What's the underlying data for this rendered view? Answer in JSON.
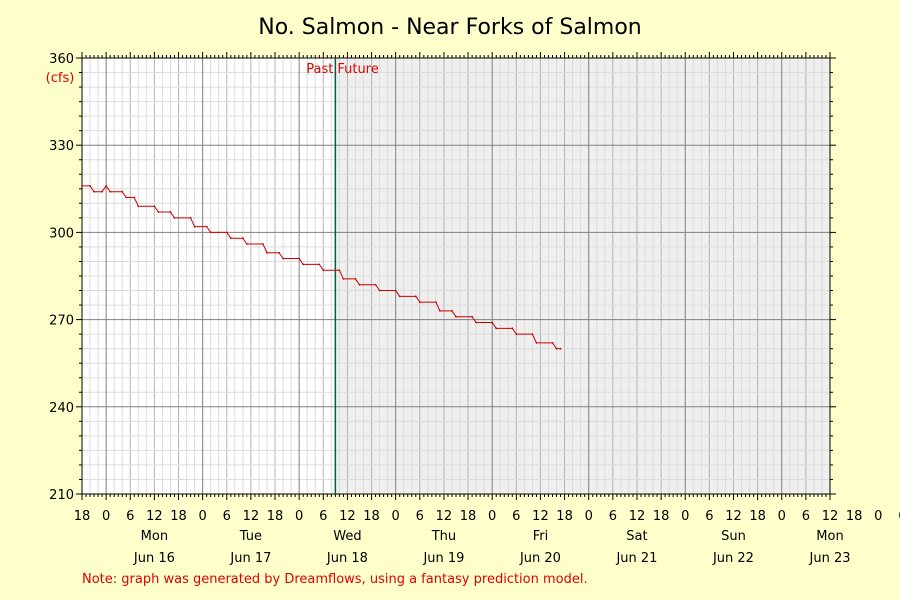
{
  "chart_data": {
    "type": "line",
    "title": "No. Salmon - Near Forks of Salmon",
    "yunit": "(cfs)",
    "ylim": [
      210,
      360
    ],
    "yticks": [
      210,
      240,
      270,
      300,
      330,
      360
    ],
    "xlim": [
      "Jun 15 18:00",
      "Jun 23 12:00"
    ],
    "hour_ticks": [
      "18",
      "0",
      "6",
      "12",
      "18",
      "0",
      "6",
      "12",
      "18",
      "0",
      "6",
      "12",
      "18",
      "0",
      "6",
      "12",
      "18",
      "0",
      "6",
      "12",
      "18",
      "0",
      "6",
      "12",
      "18",
      "0",
      "6",
      "12",
      "18",
      "0",
      "6",
      "12",
      "18",
      "0",
      "6",
      "12"
    ],
    "day_labels": [
      {
        "day": "Mon",
        "date": "Jun 16"
      },
      {
        "day": "Tue",
        "date": "Jun 17"
      },
      {
        "day": "Wed",
        "date": "Jun 18"
      },
      {
        "day": "Thu",
        "date": "Jun 19"
      },
      {
        "day": "Fri",
        "date": "Jun 20"
      },
      {
        "day": "Sat",
        "date": "Jun 21"
      },
      {
        "day": "Sun",
        "date": "Jun 22"
      },
      {
        "day": "Mon",
        "date": "Jun 23"
      }
    ],
    "now": "Jun 18 09:00",
    "past_label": "Past",
    "future_label": "Future",
    "grid": true,
    "series": [
      {
        "color": "#cc0000",
        "points": [
          [
            "Jun 15 18:00",
            316
          ],
          [
            "Jun 15 20:00",
            316
          ],
          [
            "Jun 15 21:00",
            314
          ],
          [
            "Jun 15 23:00",
            314
          ],
          [
            "Jun 16 00:00",
            316
          ],
          [
            "Jun 16 01:00",
            314
          ],
          [
            "Jun 16 04:00",
            314
          ],
          [
            "Jun 16 05:00",
            312
          ],
          [
            "Jun 16 07:00",
            312
          ],
          [
            "Jun 16 08:00",
            309
          ],
          [
            "Jun 16 12:00",
            309
          ],
          [
            "Jun 16 13:00",
            307
          ],
          [
            "Jun 16 16:00",
            307
          ],
          [
            "Jun 16 17:00",
            305
          ],
          [
            "Jun 16 21:00",
            305
          ],
          [
            "Jun 16 22:00",
            302
          ],
          [
            "Jun 17 01:00",
            302
          ],
          [
            "Jun 17 02:00",
            300
          ],
          [
            "Jun 17 06:00",
            300
          ],
          [
            "Jun 17 07:00",
            298
          ],
          [
            "Jun 17 10:00",
            298
          ],
          [
            "Jun 17 11:00",
            296
          ],
          [
            "Jun 17 15:00",
            296
          ],
          [
            "Jun 17 16:00",
            293
          ],
          [
            "Jun 17 19:00",
            293
          ],
          [
            "Jun 17 20:00",
            291
          ],
          [
            "Jun 18 00:00",
            291
          ],
          [
            "Jun 18 01:00",
            289
          ],
          [
            "Jun 18 05:00",
            289
          ],
          [
            "Jun 18 06:00",
            287
          ],
          [
            "Jun 18 10:00",
            287
          ],
          [
            "Jun 18 11:00",
            284
          ],
          [
            "Jun 18 14:00",
            284
          ],
          [
            "Jun 18 15:00",
            282
          ],
          [
            "Jun 18 19:00",
            282
          ],
          [
            "Jun 18 20:00",
            280
          ],
          [
            "Jun 19 00:00",
            280
          ],
          [
            "Jun 19 01:00",
            278
          ],
          [
            "Jun 19 05:00",
            278
          ],
          [
            "Jun 19 06:00",
            276
          ],
          [
            "Jun 19 10:00",
            276
          ],
          [
            "Jun 19 11:00",
            273
          ],
          [
            "Jun 19 14:00",
            273
          ],
          [
            "Jun 19 15:00",
            271
          ],
          [
            "Jun 19 19:00",
            271
          ],
          [
            "Jun 19 20:00",
            269
          ],
          [
            "Jun 20 00:00",
            269
          ],
          [
            "Jun 20 01:00",
            267
          ],
          [
            "Jun 20 05:00",
            267
          ],
          [
            "Jun 20 06:00",
            265
          ],
          [
            "Jun 20 10:00",
            265
          ],
          [
            "Jun 20 11:00",
            262
          ],
          [
            "Jun 20 15:00",
            262
          ],
          [
            "Jun 20 16:00",
            260
          ],
          [
            "Jun 20 17:00",
            260
          ]
        ]
      }
    ],
    "note": "Note: graph was generated by Dreamflows, using a fantasy prediction model."
  },
  "colors": {
    "background": "#ffffcc",
    "plot_past": "#ffffff",
    "plot_future": "#efefef",
    "grid_major": "#808080",
    "grid_minor": "#d8d8d8",
    "now_line": "#006040",
    "series": "#cc0000",
    "label_red": "#e00000"
  }
}
